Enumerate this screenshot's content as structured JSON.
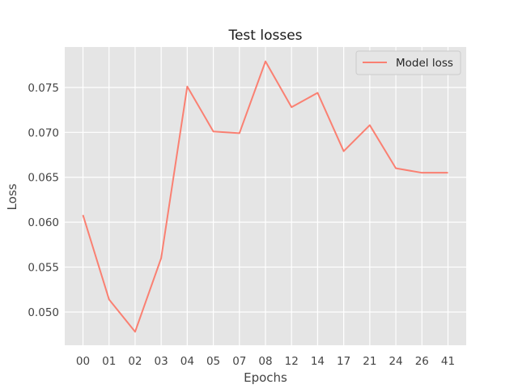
{
  "chart_data": {
    "type": "line",
    "title": "Test losses",
    "xlabel": "Epochs",
    "ylabel": "Loss",
    "categories": [
      "00",
      "01",
      "02",
      "03",
      "04",
      "05",
      "07",
      "08",
      "12",
      "14",
      "17",
      "21",
      "24",
      "26",
      "41"
    ],
    "series": [
      {
        "name": "Model loss",
        "color": "#fa8072",
        "values": [
          0.0608,
          0.0514,
          0.0478,
          0.056,
          0.0751,
          0.0701,
          0.0699,
          0.0779,
          0.0728,
          0.0744,
          0.0679,
          0.0708,
          0.066,
          0.0655,
          0.0655
        ]
      }
    ],
    "ylim": [
      0.0463,
      0.0795
    ],
    "yticks": [
      "0.050",
      "0.055",
      "0.060",
      "0.065",
      "0.070",
      "0.075"
    ],
    "grid": true,
    "legend_position": "top-right",
    "background_color": "#e5e5e5",
    "grid_color": "#ffffff"
  }
}
